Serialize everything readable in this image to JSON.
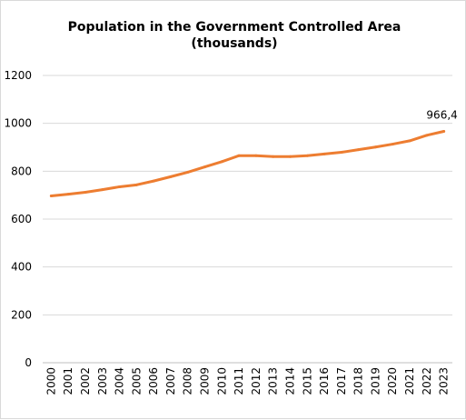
{
  "chart_data": {
    "type": "line",
    "title_line1": "Population in the Government Controlled Area",
    "title_line2": "(thousands)",
    "xlabel": "",
    "ylabel": "",
    "x": [
      "2000",
      "2001",
      "2002",
      "2003",
      "2004",
      "2005",
      "2006",
      "2007",
      "2008",
      "2009",
      "2010",
      "2011",
      "2012",
      "2013",
      "2014",
      "2015",
      "2016",
      "2017",
      "2018",
      "2019",
      "2020",
      "2021",
      "2022",
      "2023"
    ],
    "series": [
      {
        "values": [
          697,
          704,
          712,
          723,
          735,
          743,
          759,
          777,
          796,
          818,
          840,
          865,
          865,
          861,
          861,
          865,
          872,
          879,
          890,
          901,
          913,
          927,
          950,
          966.4
        ],
        "color": "#ed7d31"
      }
    ],
    "ylim": [
      0,
      1200
    ],
    "yticks": [
      "0",
      "200",
      "400",
      "600",
      "800",
      "1000",
      "1200"
    ],
    "data_labels": [
      {
        "index": 23,
        "text": "966,4"
      }
    ],
    "grid": true,
    "legend": "none"
  }
}
